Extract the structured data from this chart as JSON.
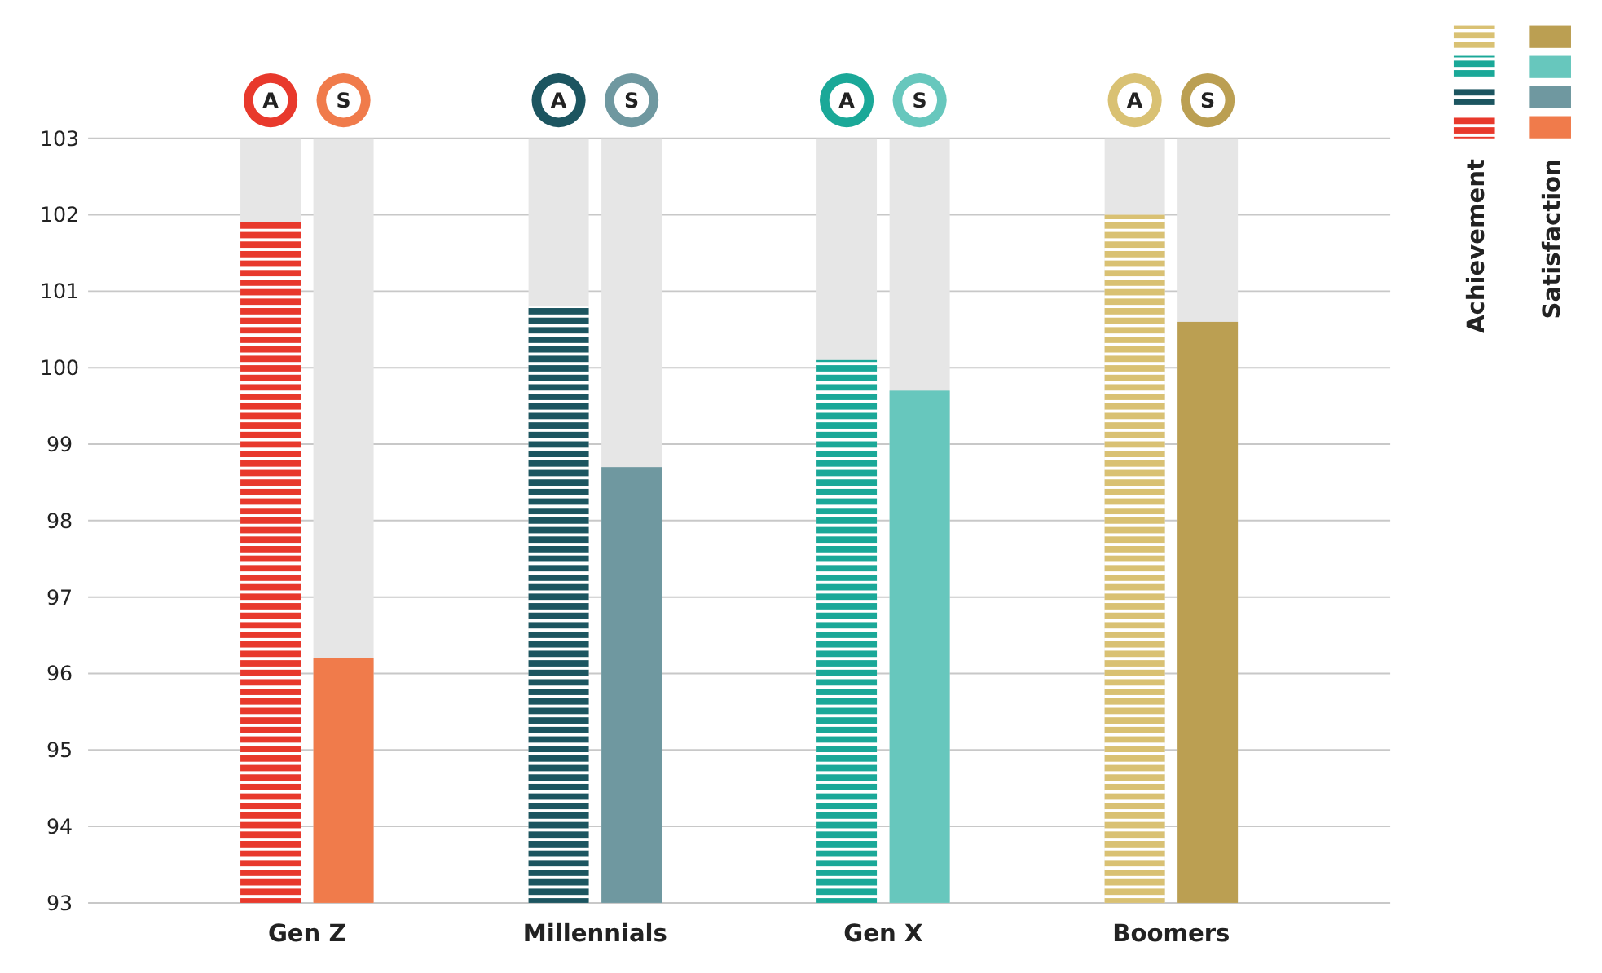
{
  "chart_data": {
    "type": "bar",
    "categories": [
      "Gen Z",
      "Millennials",
      "Gen X",
      "Boomers"
    ],
    "series": [
      {
        "name": "Achievement",
        "colors": [
          "#e8392c",
          "#1c5560",
          "#1aa898",
          "#d9c173"
        ],
        "values": [
          101.9,
          100.8,
          100.1,
          102.0
        ]
      },
      {
        "name": "Satisfaction",
        "colors": [
          "#f07b4b",
          "#6f98a0",
          "#67c7bd",
          "#bb9f52"
        ],
        "values": [
          96.2,
          98.7,
          99.7,
          100.6
        ]
      }
    ],
    "ylim": [
      93,
      103
    ],
    "yticks": [
      93,
      94,
      95,
      96,
      97,
      98,
      99,
      100,
      101,
      102,
      103
    ],
    "grid": "y",
    "legend": "top right",
    "annotations": [
      "A",
      "S"
    ]
  }
}
